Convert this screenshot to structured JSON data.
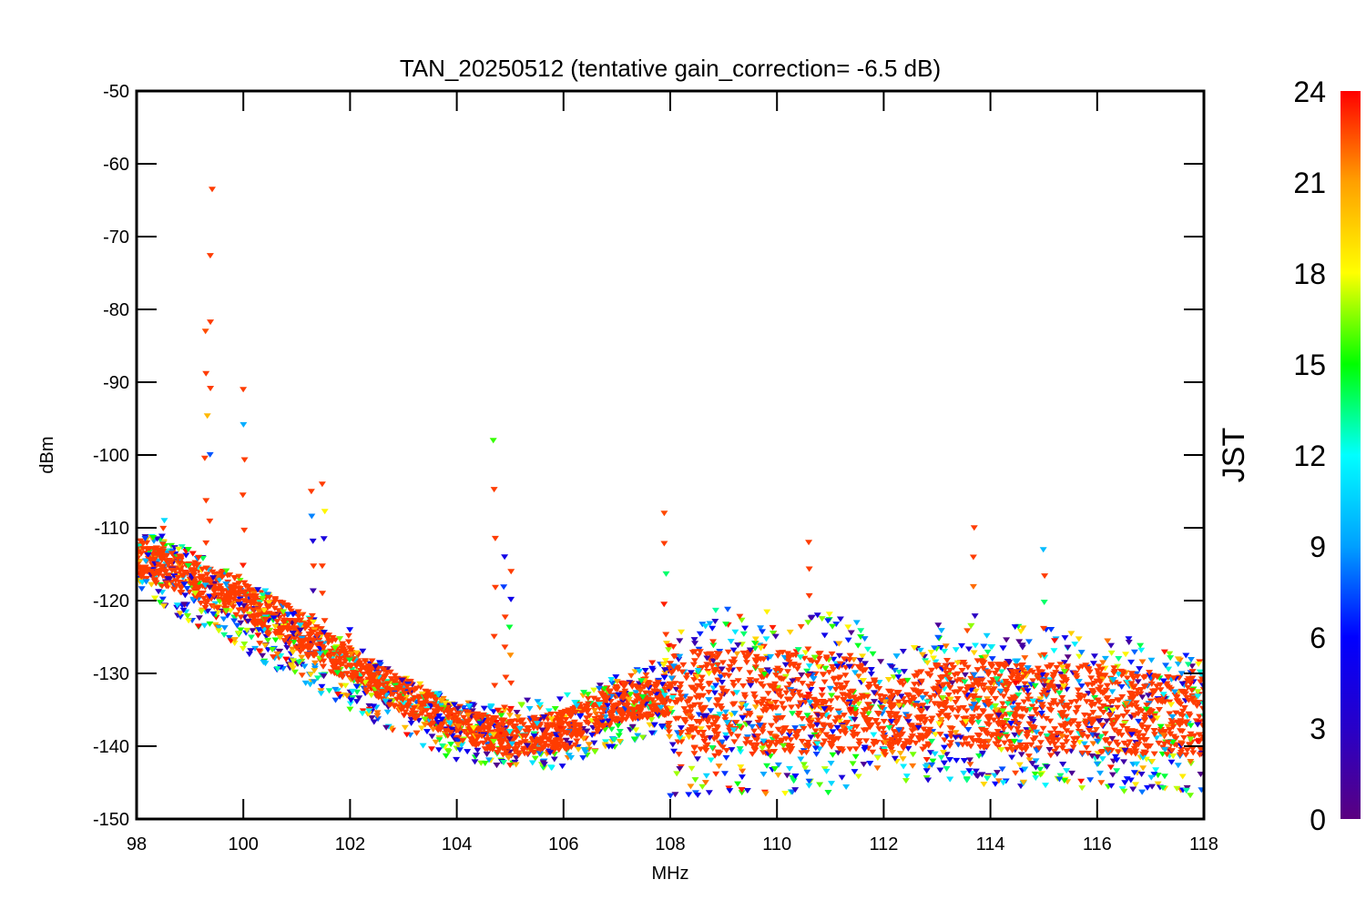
{
  "chart_data": {
    "type": "scatter",
    "title": "TAN_20250512 (tentative gain_correction= -6.5 dB)",
    "xlabel": "MHz",
    "ylabel": "dBm",
    "xlim": [
      98,
      118
    ],
    "ylim": [
      -150,
      -50
    ],
    "xticks": [
      98,
      100,
      102,
      104,
      106,
      108,
      110,
      112,
      114,
      116,
      118
    ],
    "yticks": [
      -50,
      -60,
      -70,
      -80,
      -90,
      -100,
      -110,
      -120,
      -130,
      -140,
      -150
    ],
    "grid": false,
    "marker": "down-triangle",
    "color_scale": {
      "label": "JST",
      "range": [
        0,
        24
      ],
      "ticks": [
        0,
        3,
        6,
        9,
        12,
        15,
        18,
        21,
        24
      ],
      "colormap": "rainbow",
      "stops": [
        "#5a0080",
        "#2800c8",
        "#0000ff",
        "#00a0ff",
        "#00ffff",
        "#00ff00",
        "#ffff00",
        "#ffa000",
        "#ff0000"
      ]
    },
    "dominant_color": "#ff3c00",
    "series_envelope": {
      "description_points": [
        {
          "x": 98.0,
          "y_low": -119,
          "y_high": -110,
          "y_main": -114
        },
        {
          "x": 99.0,
          "y_low": -123,
          "y_high": -113,
          "y_main": -117
        },
        {
          "x": 100.0,
          "y_low": -127,
          "y_high": -117,
          "y_main": -120
        },
        {
          "x": 101.0,
          "y_low": -131,
          "y_high": -121,
          "y_main": -124
        },
        {
          "x": 102.0,
          "y_low": -135,
          "y_high": -126,
          "y_main": -129
        },
        {
          "x": 103.0,
          "y_low": -139,
          "y_high": -130,
          "y_main": -133
        },
        {
          "x": 104.0,
          "y_low": -142,
          "y_high": -134,
          "y_main": -137
        },
        {
          "x": 105.0,
          "y_low": -143,
          "y_high": -134,
          "y_main": -139
        },
        {
          "x": 106.0,
          "y_low": -143,
          "y_high": -133,
          "y_main": -138
        },
        {
          "x": 107.0,
          "y_low": -140,
          "y_high": -130,
          "y_main": -134
        },
        {
          "x": 107.9,
          "y_low": -138,
          "y_high": -128,
          "y_main": -133
        },
        {
          "x": 108.0,
          "y_low": -147,
          "y_high": -121,
          "y_main": -134
        },
        {
          "x": 110.0,
          "y_low": -147,
          "y_high": -121,
          "y_main": -134
        },
        {
          "x": 111.5,
          "y_low": -146,
          "y_high": -122,
          "y_main": -134
        },
        {
          "x": 112.0,
          "y_low": -145,
          "y_high": -129,
          "y_main": -137
        },
        {
          "x": 113.0,
          "y_low": -145,
          "y_high": -123,
          "y_main": -134
        },
        {
          "x": 116.0,
          "y_low": -146,
          "y_high": -124,
          "y_main": -135
        },
        {
          "x": 118.0,
          "y_low": -147,
          "y_high": -128,
          "y_main": -136
        }
      ]
    },
    "spikes": [
      {
        "x": 98.5,
        "y_top": -109
      },
      {
        "x": 99.3,
        "y_top": -83
      },
      {
        "x": 99.4,
        "y_top": -63.5
      },
      {
        "x": 100.0,
        "y_top": -91
      },
      {
        "x": 101.3,
        "y_top": -105
      },
      {
        "x": 101.5,
        "y_top": -104
      },
      {
        "x": 102.0,
        "y_top": -124
      },
      {
        "x": 104.7,
        "y_top": -98
      },
      {
        "x": 104.9,
        "y_top": -114
      },
      {
        "x": 105.0,
        "y_top": -116
      },
      {
        "x": 107.9,
        "y_top": -108
      },
      {
        "x": 110.6,
        "y_top": -112
      },
      {
        "x": 113.7,
        "y_top": -110
      },
      {
        "x": 115.0,
        "y_top": -113
      }
    ]
  }
}
